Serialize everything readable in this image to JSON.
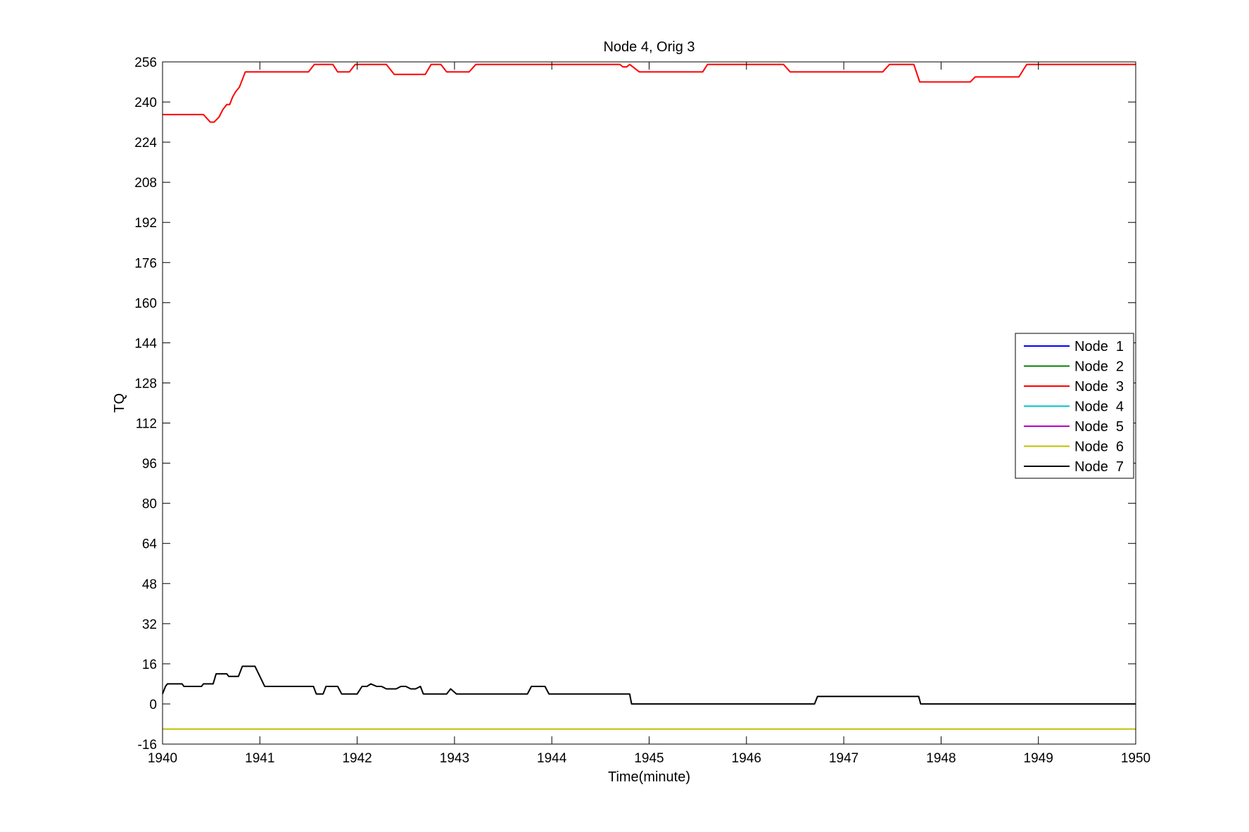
{
  "chart_data": {
    "type": "line",
    "title": "Node 4, Orig 3",
    "xlabel": "Time(minute)",
    "ylabel": "TQ",
    "xlim": [
      1940,
      1950
    ],
    "ylim": [
      -16,
      256
    ],
    "xticks": [
      1940,
      1941,
      1942,
      1943,
      1944,
      1945,
      1946,
      1947,
      1948,
      1949,
      1950
    ],
    "yticks": [
      -16,
      0,
      16,
      32,
      48,
      64,
      80,
      96,
      112,
      128,
      144,
      160,
      176,
      192,
      208,
      224,
      240,
      256
    ],
    "grid": false,
    "legend_position": "right",
    "series": [
      {
        "name": "Node  1",
        "color": "#0000ff",
        "x": [],
        "y": []
      },
      {
        "name": "Node  2",
        "color": "#008000",
        "x": [],
        "y": []
      },
      {
        "name": "Node  3",
        "color": "#ff0000",
        "x": [
          1940.0,
          1940.42,
          1940.49,
          1940.53,
          1940.58,
          1940.62,
          1940.66,
          1940.69,
          1940.72,
          1940.75,
          1940.79,
          1940.85,
          1940.92,
          1941.5,
          1941.56,
          1941.75,
          1941.8,
          1941.92,
          1941.98,
          1942.3,
          1942.38,
          1942.7,
          1942.76,
          1942.86,
          1942.92,
          1943.15,
          1943.22,
          1944.7,
          1944.73,
          1944.77,
          1944.8,
          1944.9,
          1945.55,
          1945.6,
          1946.38,
          1946.45,
          1947.4,
          1947.47,
          1947.72,
          1947.78,
          1948.3,
          1948.35,
          1948.8,
          1948.88,
          1950.0
        ],
        "y": [
          235,
          235,
          232,
          232,
          234,
          237,
          239,
          239,
          242,
          244,
          246,
          252,
          252,
          252,
          255,
          255,
          252,
          252,
          255,
          255,
          251,
          251,
          255,
          255,
          252,
          252,
          255,
          255,
          254,
          254,
          255,
          252,
          252,
          255,
          255,
          252,
          252,
          255,
          255,
          248,
          248,
          250,
          250,
          255,
          255
        ]
      },
      {
        "name": "Node  4",
        "color": "#00bfbf",
        "x": [],
        "y": []
      },
      {
        "name": "Node  5",
        "color": "#bf00bf",
        "x": [],
        "y": []
      },
      {
        "name": "Node  6",
        "color": "#bfbf00",
        "x": [
          1940.0,
          1950.0
        ],
        "y": [
          -10,
          -10
        ]
      },
      {
        "name": "Node  7",
        "color": "#000000",
        "x": [
          1940.0,
          1940.03,
          1940.05,
          1940.2,
          1940.22,
          1940.4,
          1940.42,
          1940.52,
          1940.55,
          1940.66,
          1940.68,
          1940.78,
          1940.82,
          1940.95,
          1941.0,
          1941.05,
          1941.55,
          1941.58,
          1941.65,
          1941.68,
          1941.8,
          1941.84,
          1942.0,
          1942.05,
          1942.1,
          1942.14,
          1942.2,
          1942.25,
          1942.3,
          1942.4,
          1942.45,
          1942.5,
          1942.55,
          1942.6,
          1942.65,
          1942.68,
          1942.92,
          1942.96,
          1943.02,
          1943.06,
          1943.75,
          1943.79,
          1943.93,
          1943.97,
          1944.8,
          1944.82,
          1946.7,
          1946.73,
          1947.77,
          1947.79,
          1950.0
        ],
        "y": [
          4,
          7,
          8,
          8,
          7,
          7,
          8,
          8,
          12,
          12,
          11,
          11,
          15,
          15,
          11,
          7,
          7,
          4,
          4,
          7,
          7,
          4,
          4,
          7,
          7,
          8,
          7,
          7,
          6,
          6,
          7,
          7,
          6,
          6,
          7,
          4,
          4,
          6,
          4,
          4,
          4,
          7,
          7,
          4,
          4,
          0,
          0,
          3,
          3,
          0,
          0
        ]
      }
    ]
  }
}
